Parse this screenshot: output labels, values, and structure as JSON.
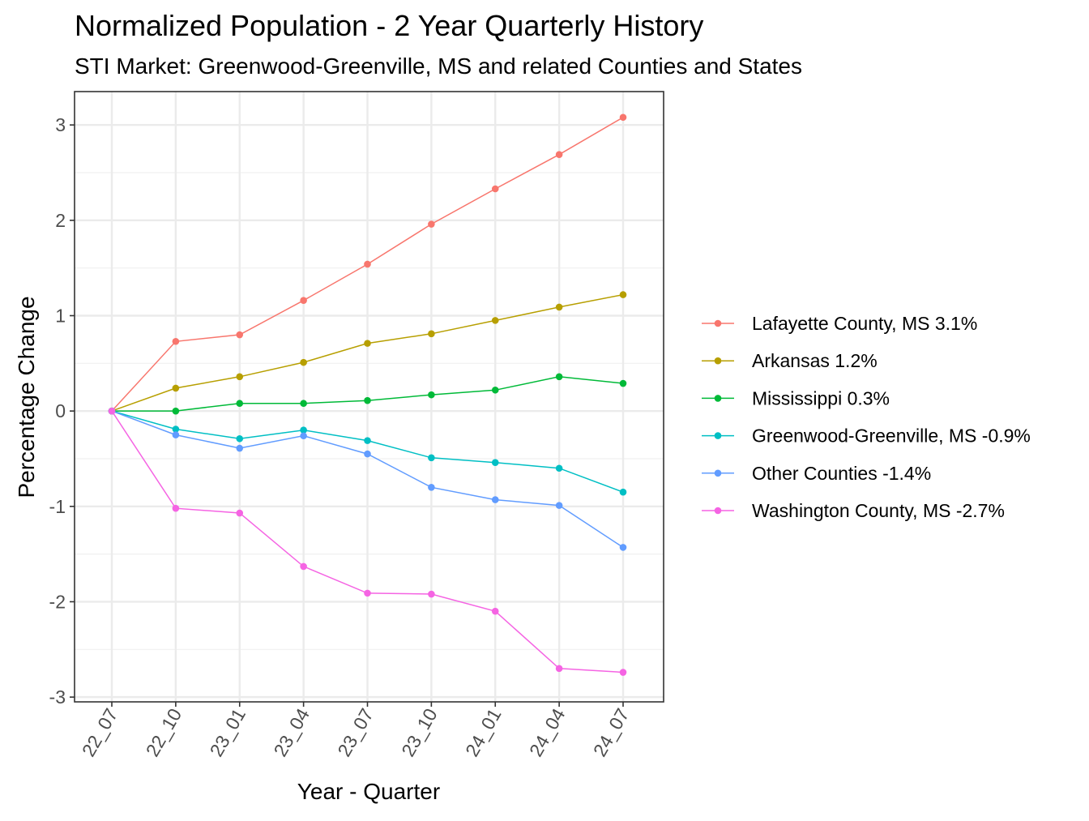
{
  "chart_data": {
    "type": "line",
    "title": "Normalized Population - 2 Year Quarterly History",
    "subtitle": "STI Market: Greenwood-Greenville, MS and related Counties and States",
    "xlabel": "Year - Quarter",
    "ylabel": "Percentage Change",
    "categories": [
      "22_07",
      "22_10",
      "23_01",
      "23_04",
      "23_07",
      "23_10",
      "24_01",
      "24_04",
      "24_07"
    ],
    "ylim": [
      -3.05,
      3.35
    ],
    "yticks": [
      -3,
      -2,
      -1,
      0,
      1,
      2,
      3
    ],
    "ytick_labels": [
      "-3",
      "-2",
      "-1",
      "0",
      "1",
      "2",
      "3"
    ],
    "grid": true,
    "legend_position": "right",
    "series": [
      {
        "name": "Lafayette County, MS 3.1%",
        "color": "#F8766D",
        "values": [
          0,
          0.73,
          0.8,
          1.16,
          1.54,
          1.96,
          2.33,
          2.69,
          3.08
        ]
      },
      {
        "name": "Arkansas 1.2%",
        "color": "#B79F00",
        "values": [
          0,
          0.24,
          0.36,
          0.51,
          0.71,
          0.81,
          0.95,
          1.09,
          1.22
        ]
      },
      {
        "name": "Mississippi 0.3%",
        "color": "#00BA38",
        "values": [
          0,
          0.0,
          0.08,
          0.08,
          0.11,
          0.17,
          0.22,
          0.36,
          0.29
        ]
      },
      {
        "name": "Greenwood-Greenville, MS -0.9%",
        "color": "#00BFC4",
        "values": [
          0,
          -0.19,
          -0.29,
          -0.2,
          -0.31,
          -0.49,
          -0.54,
          -0.6,
          -0.85
        ]
      },
      {
        "name": "Other Counties -1.4%",
        "color": "#619CFF",
        "values": [
          0,
          -0.25,
          -0.39,
          -0.26,
          -0.45,
          -0.8,
          -0.93,
          -0.99,
          -1.43
        ]
      },
      {
        "name": "Washington County, MS -2.7%",
        "color": "#F564E3",
        "values": [
          0,
          -1.02,
          -1.07,
          -1.63,
          -1.91,
          -1.92,
          -2.1,
          -2.7,
          -2.74
        ]
      }
    ]
  }
}
